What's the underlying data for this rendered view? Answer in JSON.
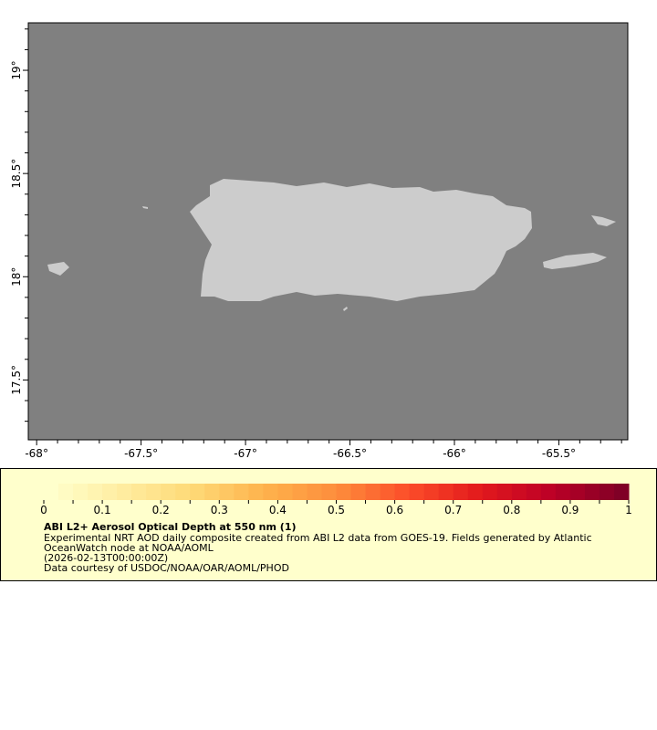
{
  "map": {
    "colors": {
      "ocean": "#808080",
      "land": "#cccccc"
    },
    "x_axis": {
      "range": [
        -68.04,
        -65.17
      ],
      "ticks": [
        "-68°",
        "-67.5°",
        "-67°",
        "-66.5°",
        "-66°",
        "-65.5°"
      ],
      "tick_values": [
        -68,
        -67.5,
        -67,
        -66.5,
        -66,
        -65.5
      ]
    },
    "y_axis": {
      "range": [
        17.21,
        19.23
      ],
      "ticks": [
        "17.5°",
        "18°",
        "18.5°",
        "19°"
      ],
      "tick_values": [
        17.5,
        18,
        18.5,
        19
      ]
    }
  },
  "legend": {
    "colorbar": {
      "range": [
        0,
        1
      ],
      "steps": 40,
      "colormap": "YlOrRd",
      "ticks": [
        "0",
        "0.1",
        "0.2",
        "0.3",
        "0.4",
        "0.5",
        "0.6",
        "0.7",
        "0.8",
        "0.9",
        "1"
      ]
    },
    "title": "ABI L2+ Aerosol Optical Depth at 550 nm (1)",
    "line1": "Experimental NRT AOD daily composite created from ABI L2 data from GOES-19. Fields generated by Atlantic",
    "line2": "OceanWatch node at NOAA/AOML",
    "time": "(2026-02-13T00:00:00Z)",
    "credit": "Data courtesy of USDOC/NOAA/OAR/AOML/PHOD"
  }
}
